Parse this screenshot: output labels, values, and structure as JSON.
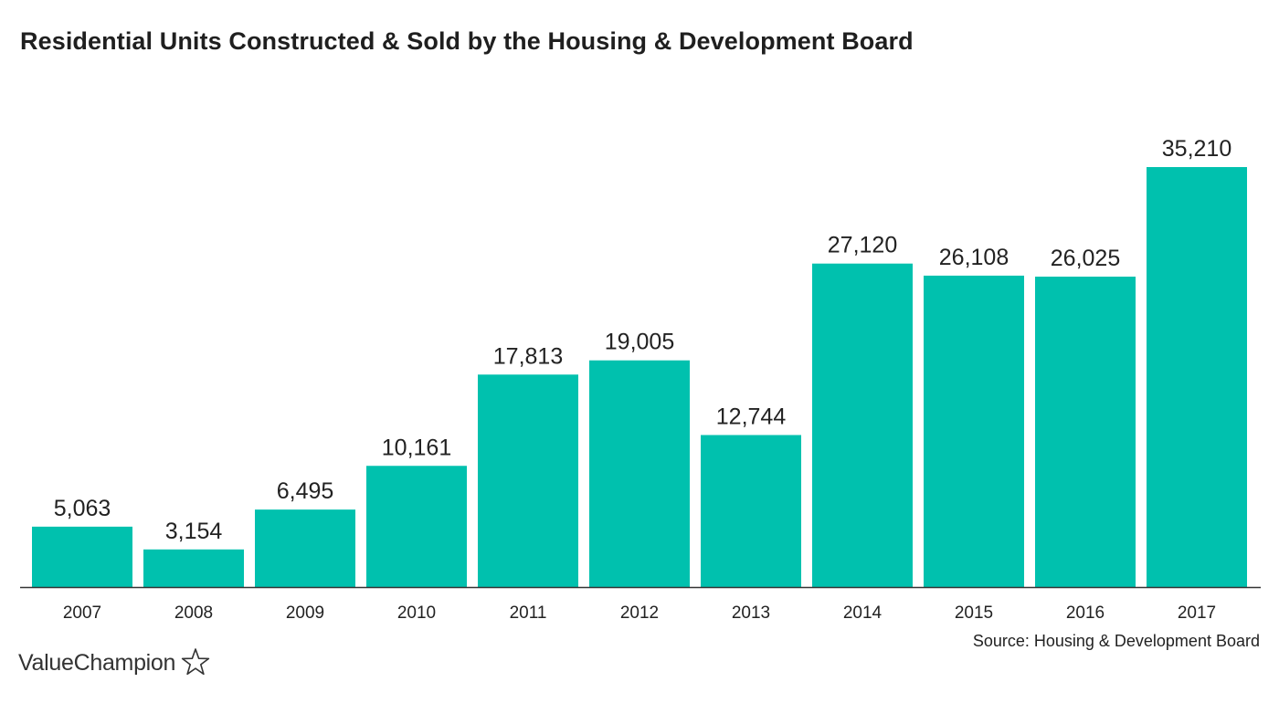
{
  "title": "Residential Units Constructed & Sold by the Housing & Development Board",
  "source": "Source: Housing & Development Board",
  "brand": {
    "name": "ValueChampion",
    "icon": "star-outline-icon"
  },
  "colors": {
    "bar": "#00C1AE",
    "axis": "#333333",
    "text": "#222222"
  },
  "chart_data": {
    "type": "bar",
    "title": "Residential Units Constructed & Sold by the Housing & Development Board",
    "xlabel": "",
    "ylabel": "",
    "categories": [
      "2007",
      "2008",
      "2009",
      "2010",
      "2011",
      "2012",
      "2013",
      "2014",
      "2015",
      "2016",
      "2017"
    ],
    "values": [
      5063,
      3154,
      6495,
      10161,
      17813,
      19005,
      12744,
      27120,
      26108,
      26025,
      35210
    ],
    "data_labels": [
      "5,063",
      "3,154",
      "6,495",
      "10,161",
      "17,813",
      "19,005",
      "12,744",
      "27,120",
      "26,108",
      "26,025",
      "35,210"
    ],
    "ylim": [
      0,
      35210
    ],
    "grid": false,
    "legend": "none"
  }
}
